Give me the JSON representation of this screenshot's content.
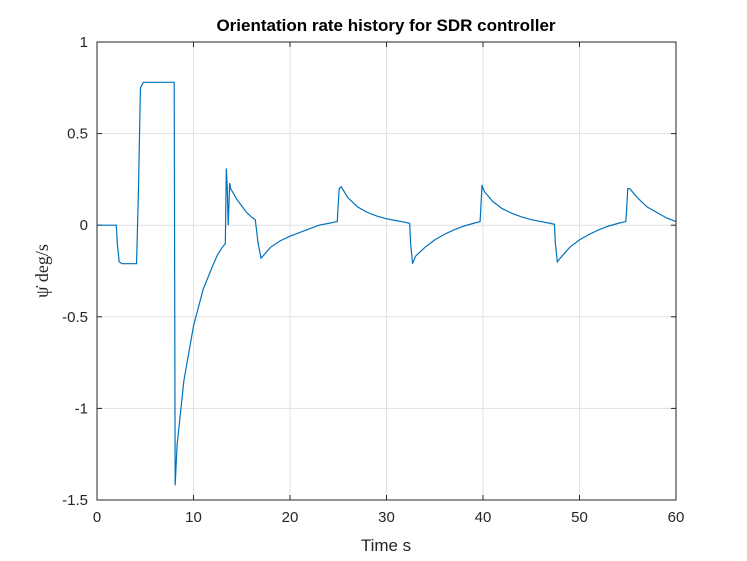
{
  "chart_data": {
    "type": "line",
    "title": "Orientation rate history for SDR controller",
    "xlabel": "Time s",
    "ylabel": "ψ̇ deg/s",
    "xlim": [
      0,
      60
    ],
    "ylim": [
      -1.5,
      1
    ],
    "grid": true,
    "xticks": [
      0,
      10,
      20,
      30,
      40,
      50,
      60
    ],
    "xtick_labels": [
      "0",
      "10",
      "20",
      "30",
      "40",
      "50",
      "60"
    ],
    "yticks": [
      1,
      0.5,
      0,
      -0.5,
      -1,
      -1.5
    ],
    "ytick_labels": [
      "1",
      "0.5",
      "0",
      "-0.5",
      "-1",
      "-1.5"
    ],
    "series": [
      {
        "color": "#0072bd",
        "x": [
          0,
          2.0,
          2.1,
          2.3,
          2.6,
          4.1,
          4.3,
          4.5,
          4.8,
          8.0,
          8.1,
          8.3,
          9.0,
          10.0,
          11.0,
          12.0,
          12.5,
          13.0,
          13.3,
          13.4,
          13.5,
          13.6,
          13.75,
          13.85,
          14.5,
          15.5,
          16.0,
          16.4,
          16.7,
          17.0,
          18.0,
          19.0,
          20.0,
          21.0,
          22.0,
          23.0,
          24.0,
          24.9,
          25.0,
          25.1,
          25.3,
          26.0,
          27.0,
          28.0,
          29.0,
          30.0,
          31.0,
          32.0,
          32.4,
          32.5,
          32.7,
          33.0,
          34.0,
          35.0,
          36.0,
          37.0,
          38.0,
          39.0,
          39.7,
          39.8,
          39.9,
          40.0,
          40.2,
          41.0,
          42.0,
          43.0,
          44.0,
          45.0,
          46.0,
          47.0,
          47.4,
          47.5,
          47.7,
          48.0,
          49.0,
          50.0,
          51.0,
          52.0,
          53.0,
          54.0,
          54.8,
          54.9,
          55.0,
          55.2,
          56.0,
          57.0,
          58.0,
          59.0,
          60.0
        ],
        "y": [
          0,
          0,
          -0.1,
          -0.2,
          -0.21,
          -0.21,
          0.2,
          0.75,
          0.78,
          0.78,
          -1.42,
          -1.2,
          -0.85,
          -0.55,
          -0.35,
          -0.22,
          -0.16,
          -0.12,
          -0.1,
          0.31,
          0.2,
          0.0,
          0.23,
          0.2,
          0.14,
          0.07,
          0.045,
          0.03,
          -0.1,
          -0.18,
          -0.12,
          -0.085,
          -0.06,
          -0.04,
          -0.02,
          0.0,
          0.01,
          0.02,
          0.12,
          0.2,
          0.21,
          0.15,
          0.1,
          0.07,
          0.05,
          0.035,
          0.025,
          0.015,
          0.01,
          -0.1,
          -0.21,
          -0.17,
          -0.12,
          -0.08,
          -0.05,
          -0.025,
          -0.005,
          0.01,
          0.02,
          0.12,
          0.22,
          0.2,
          0.18,
          0.13,
          0.09,
          0.065,
          0.045,
          0.03,
          0.02,
          0.01,
          0.005,
          -0.1,
          -0.2,
          -0.18,
          -0.12,
          -0.08,
          -0.05,
          -0.025,
          -0.005,
          0.01,
          0.02,
          0.1,
          0.2,
          0.2,
          0.15,
          0.1,
          0.07,
          0.04,
          0.02
        ]
      }
    ]
  }
}
